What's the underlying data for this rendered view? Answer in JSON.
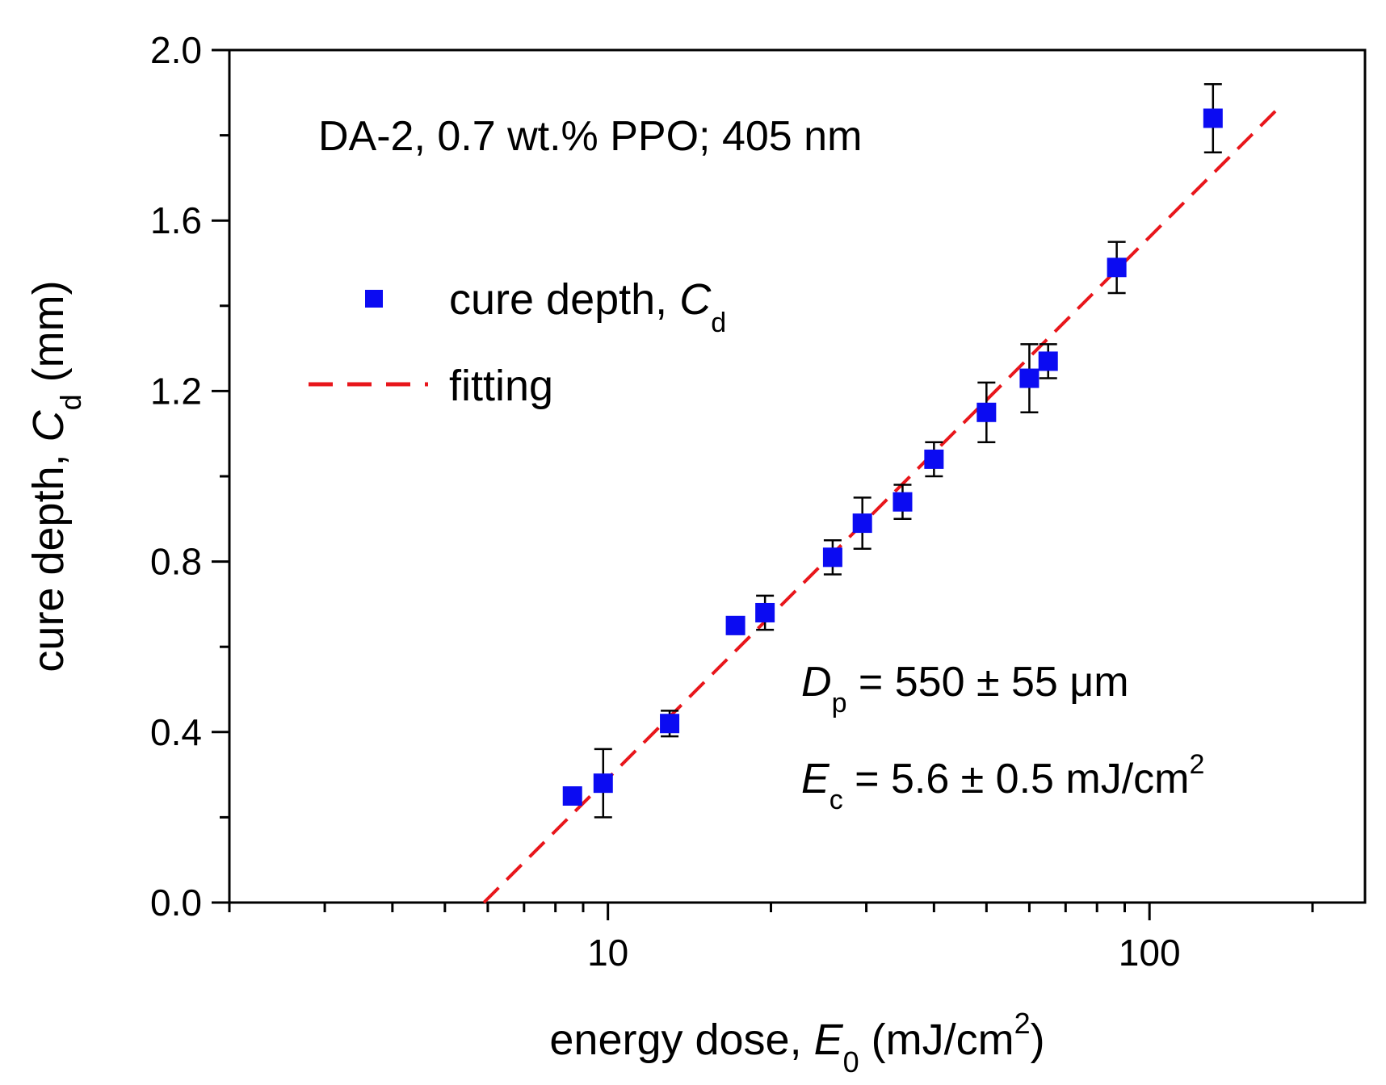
{
  "chart_data": {
    "type": "scatter",
    "title": "",
    "xscale": "log",
    "xlim": [
      2,
      250
    ],
    "ylim": [
      0,
      2.0
    ],
    "x_ticks": [
      10,
      100
    ],
    "x_tick_labels": [
      "10",
      "100"
    ],
    "y_ticks": [
      0,
      0.4,
      0.8,
      1.2,
      1.6,
      2.0
    ],
    "y_tick_labels": [
      "0.0",
      "0.4",
      "0.8",
      "1.2",
      "1.6",
      "2.0"
    ],
    "xlabel": {
      "pre": "energy dose, ",
      "sym": "E",
      "sub": "0",
      "post": " (mJ/cm",
      "sup": "2",
      "end": ")"
    },
    "ylabel": {
      "pre": "cure depth, ",
      "sym": "C",
      "sub": "d",
      "post": " (mm)"
    },
    "annotation_top": "DA-2, 0.7 wt.% PPO; 405 nm",
    "annotation_dp": {
      "sym": "D",
      "sub": "p",
      "text": " = 550 ± 55 μm"
    },
    "annotation_ec": {
      "sym": "E",
      "sub": "c",
      "text": " = 5.6 ± 0.5 mJ/cm",
      "sup": "2"
    },
    "legend": {
      "placement": "upper-left",
      "points_label": "cure depth, ",
      "points_sym": "C",
      "points_sub": "d",
      "line_label": "fitting"
    },
    "series": [
      {
        "name": "cure depth, Cd",
        "kind": "points",
        "color": "#0b0bf2",
        "points": [
          {
            "x": 8.6,
            "y": 0.25,
            "err": 0.02
          },
          {
            "x": 9.8,
            "y": 0.28,
            "err": 0.08
          },
          {
            "x": 13.0,
            "y": 0.42,
            "err": 0.03
          },
          {
            "x": 17.2,
            "y": 0.65,
            "err": 0.02
          },
          {
            "x": 19.5,
            "y": 0.68,
            "err": 0.04
          },
          {
            "x": 26.0,
            "y": 0.81,
            "err": 0.04
          },
          {
            "x": 29.5,
            "y": 0.89,
            "err": 0.06
          },
          {
            "x": 35.0,
            "y": 0.94,
            "err": 0.04
          },
          {
            "x": 40.0,
            "y": 1.04,
            "err": 0.04
          },
          {
            "x": 50.0,
            "y": 1.15,
            "err": 0.07
          },
          {
            "x": 60.0,
            "y": 1.23,
            "err": 0.08
          },
          {
            "x": 65.0,
            "y": 1.27,
            "err": 0.04
          },
          {
            "x": 87.0,
            "y": 1.49,
            "err": 0.06
          },
          {
            "x": 131.0,
            "y": 1.84,
            "err": 0.08
          }
        ]
      },
      {
        "name": "fitting",
        "kind": "line",
        "color": "#e8161b",
        "dash": "dashed",
        "x": [
          5.9,
          175
        ],
        "y": [
          0.0,
          1.87
        ]
      }
    ]
  }
}
